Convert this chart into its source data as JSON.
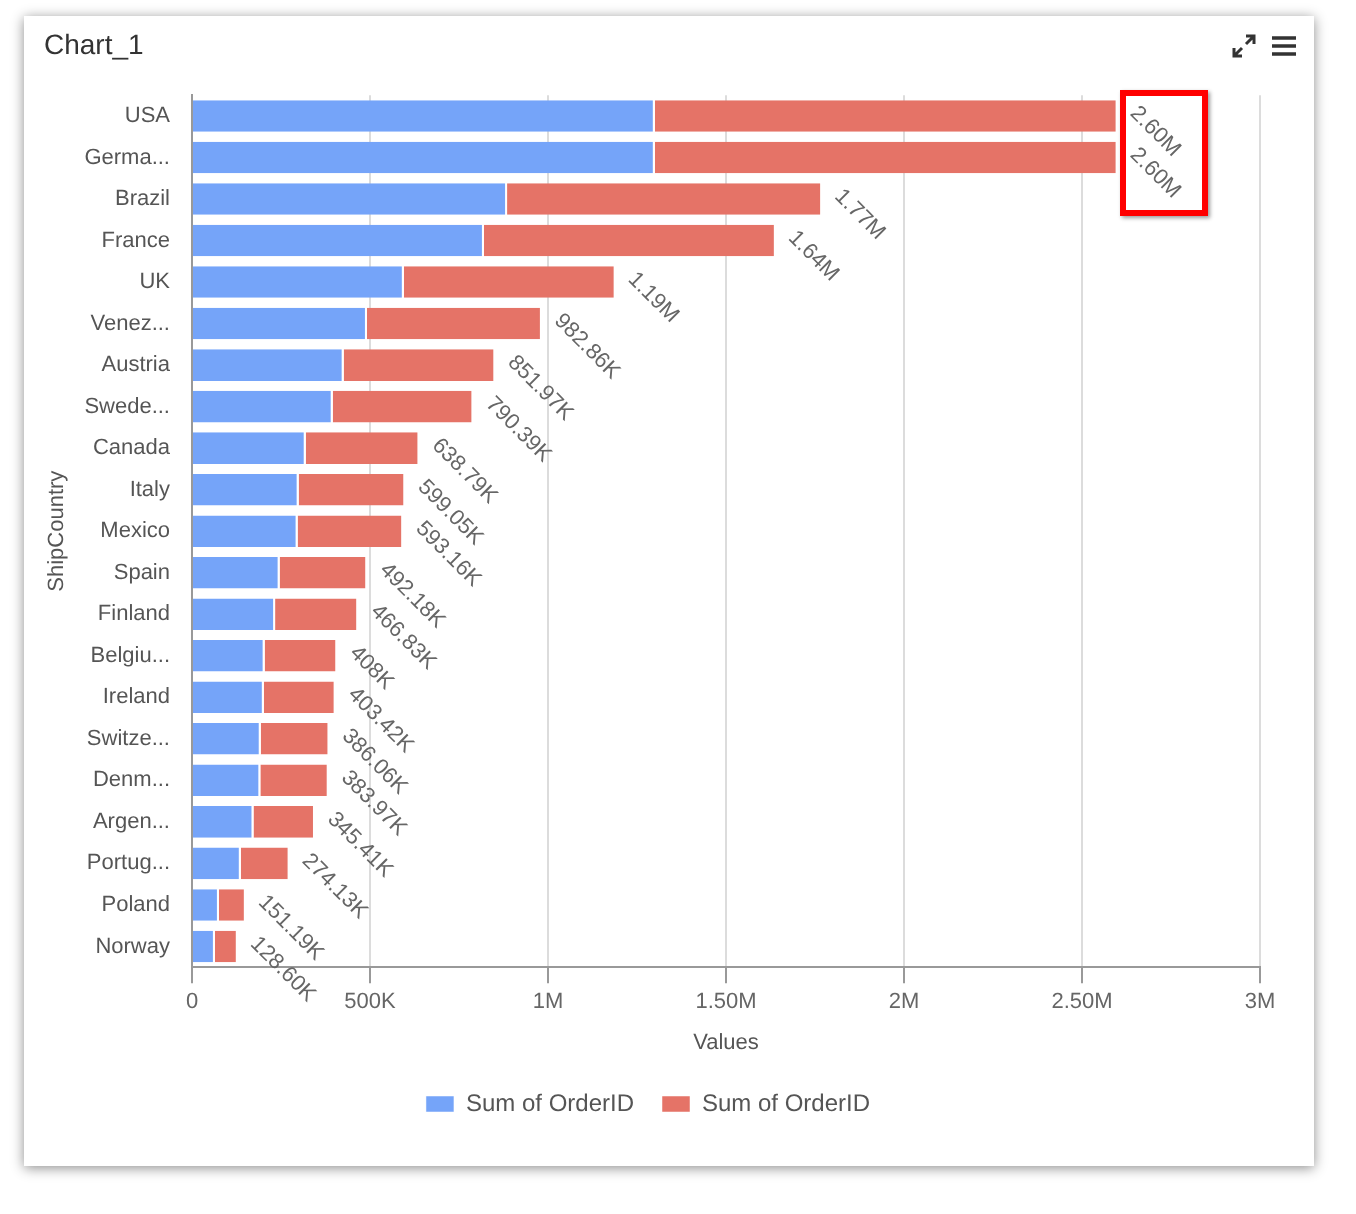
{
  "chart_data": {
    "type": "bar",
    "title": "Chart_1",
    "orientation": "horizontal",
    "stacked": true,
    "xlabel": "Values",
    "ylabel": "ShipCountry",
    "categories": [
      "USA",
      "Germa...",
      "Brazil",
      "France",
      "UK",
      "Venez...",
      "Austria",
      "Swede...",
      "Canada",
      "Italy",
      "Mexico",
      "Spain",
      "Finland",
      "Belgiu...",
      "Ireland",
      "Switze...",
      "Denm...",
      "Argen...",
      "Portug...",
      "Poland",
      "Norway"
    ],
    "series": [
      {
        "name": "Sum of OrderID",
        "color": "#75a4f9",
        "values": [
          1300000,
          1300000,
          885000,
          820000,
          595000,
          491430,
          425985,
          395195,
          319395,
          299525,
          296580,
          246090,
          233415,
          204000,
          201710,
          193030,
          191985,
          172705,
          137065,
          75595,
          64300
        ]
      },
      {
        "name": "Sum of OrderID",
        "color": "#e57367",
        "values": [
          1300000,
          1300000,
          885000,
          820000,
          595000,
          491430,
          425985,
          395195,
          319395,
          299525,
          296580,
          246090,
          233415,
          204000,
          201710,
          193030,
          191985,
          172705,
          137065,
          75595,
          64300
        ]
      }
    ],
    "totals": [
      "2.60M",
      "2.60M",
      "1.77M",
      "1.64M",
      "1.19M",
      "982.86K",
      "851.97K",
      "790.39K",
      "638.79K",
      "599.05K",
      "593.16K",
      "492.18K",
      "466.83K",
      "408K",
      "403.42K",
      "386.06K",
      "383.97K",
      "345.41K",
      "274.13K",
      "151.19K",
      "128.60K"
    ],
    "xlim": [
      0,
      3000000
    ],
    "xticks": [
      0,
      {
        "value": 500000,
        "label": "500K"
      },
      {
        "value": 1000000,
        "label": "1M"
      },
      {
        "value": 1500000,
        "label": "1.50M"
      },
      {
        "value": 2000000,
        "label": "2M"
      },
      {
        "value": 2500000,
        "label": "2.50M"
      },
      {
        "value": 3000000,
        "label": "3M"
      }
    ],
    "grid": "x",
    "legend": "bottom"
  }
}
